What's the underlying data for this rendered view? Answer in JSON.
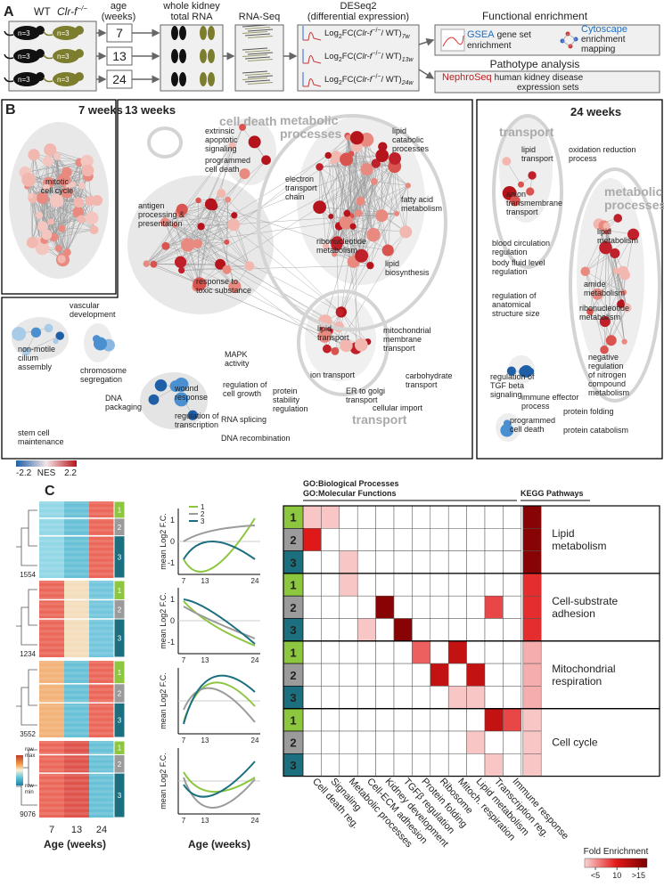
{
  "panel_a": {
    "label": "A",
    "wt": "WT",
    "ko": "Clr-f",
    "ko_sup": "−/−",
    "n": "n=3",
    "age_header": [
      "age",
      "(weeks)"
    ],
    "ages": [
      "7",
      "13",
      "24"
    ],
    "rna_header": [
      "whole kidney",
      "total RNA"
    ],
    "rnaseq": "RNA-Seq",
    "deseq": [
      "DESeq2",
      "(differential expression)"
    ],
    "log2fc": {
      "log": "Log",
      "two": "2",
      "fc": "FC(",
      "ko": "Clr-f",
      "sup": "−/−",
      "wt": "/ WT)",
      "subs": [
        "7w",
        "13w",
        "24w"
      ]
    },
    "functional": "Functional enrichment",
    "gsea": "GSEA",
    "gsea_text": [
      "gene set",
      "enrichment"
    ],
    "cytoscape": "Cytoscape",
    "cytoscape_text": [
      "enrichment",
      "mapping"
    ],
    "pathotype": "Pathotype analysis",
    "nephroseq": "NephroSeq",
    "nephroseq_text": [
      "human kidney disease",
      "expression sets"
    ]
  },
  "panel_b": {
    "label": "B",
    "w7": {
      "title": "7 weeks",
      "labels": [
        [
          "mitotic",
          "cell cycle"
        ]
      ]
    },
    "w13": {
      "title": "13 weeks",
      "groups": [
        [
          "cell death"
        ],
        [
          "metabolic",
          "processes"
        ],
        [
          "transport"
        ]
      ],
      "labels": [
        [
          "extrinsic",
          "apoptotic",
          "signaling"
        ],
        [
          "programmed",
          "cell death"
        ],
        [
          "antigen",
          "processing &",
          "presentation"
        ],
        [
          "electron",
          "transport",
          "chain"
        ],
        [
          "lipid",
          "catabolic",
          "processes"
        ],
        [
          "fatty acid",
          "metabolism"
        ],
        [
          "ribonucleotide",
          "metabolism"
        ],
        [
          "lipid",
          "biosynthesis"
        ],
        [
          "response to",
          "toxic substance"
        ],
        [
          "vascular",
          "development"
        ],
        [
          "non-motile",
          "cilium",
          "assembly"
        ],
        [
          "chromosome",
          "segregation"
        ],
        [
          "wound",
          "response"
        ],
        [
          "MAPK",
          "activity"
        ],
        [
          "regulation of",
          "cell growth"
        ],
        [
          "protein",
          "stability",
          "regulation"
        ],
        [
          "lipid",
          "transport"
        ],
        [
          "mitochondrial",
          "membrane",
          "transport"
        ],
        [
          "ion transport"
        ],
        [
          "carbohydrate",
          "transport"
        ],
        [
          "ER to golgi",
          "transport"
        ],
        [
          "cellular import"
        ],
        [
          "DNA",
          "packaging"
        ],
        [
          "stem cell",
          "maintenance"
        ],
        [
          "regulation of",
          "transcription"
        ],
        [
          "RNA splicing"
        ],
        [
          "DNA recombination"
        ]
      ]
    },
    "w24": {
      "title": "24 weeks",
      "groups": [
        [
          "transport"
        ],
        [
          "metabolic",
          "processes"
        ]
      ],
      "labels": [
        [
          "lipid",
          "transport"
        ],
        [
          "anion",
          "transmembrane",
          "transport"
        ],
        [
          "oxidation reduction",
          "process"
        ],
        [
          "lipid",
          "metabolism"
        ],
        [
          "blood circulation",
          "regulation"
        ],
        [
          "body fluid level",
          "regulation"
        ],
        [
          "amide",
          "metabolism"
        ],
        [
          "regulation of",
          "anatomical",
          "structure size"
        ],
        [
          "ribonucleotide",
          "metabolism"
        ],
        [
          "regulation of",
          "TGF beta",
          "signaling"
        ],
        [
          "negative",
          "regulation",
          "of nitrogen",
          "compound",
          "metabolism"
        ],
        [
          "immune effector",
          "process"
        ],
        [
          "protein folding"
        ],
        [
          "programmed",
          "cell death"
        ],
        [
          "protein catabolism"
        ]
      ]
    },
    "nes_legend": {
      "min": "-2.2",
      "title": "NES",
      "max": "2.2"
    }
  },
  "panel_c": {
    "label": "C",
    "cluster_sizes": [
      "1554",
      "1234",
      "3552",
      "9076"
    ],
    "row_legend": {
      "max": [
        "row",
        "max"
      ],
      "min": [
        "row",
        "min"
      ]
    },
    "ages": [
      "7",
      "13",
      "24"
    ],
    "age_axis": "Age (weeks)",
    "mean_axis": "mean Log2 F.C.",
    "line_ticks": [
      "1",
      "0",
      "-1"
    ],
    "cluster_ids": [
      "1",
      "2",
      "3"
    ],
    "cluster_colors": [
      "#8dc63f",
      "#9b9b9b",
      "#1b6f7f"
    ],
    "go_header": [
      "GO:Biological Processes",
      "GO:Molecular Functions"
    ],
    "kegg_header": "KEGG Pathways",
    "pathways": [
      [
        "Lipid",
        "metabolism"
      ],
      [
        "Cell-substrate",
        "adhesion"
      ],
      [
        "Mitochondrial",
        "respiration"
      ],
      [
        "Cell cycle"
      ]
    ],
    "columns": [
      "Cell death reg.",
      "Signaling",
      "Metabolic processes",
      "Cell-ECM adhesion",
      "Kidney development",
      "TGFβ regulation",
      "Protein folding",
      "Ribosome",
      "Mitoch. respiration",
      "Lipid metabolism",
      "Transcription reg.",
      "Immune response"
    ],
    "enrichment": [
      [
        3,
        3,
        0,
        0,
        0,
        0,
        0,
        0,
        0,
        0,
        0,
        0,
        16
      ],
      [
        10,
        0,
        0,
        0,
        0,
        0,
        0,
        0,
        0,
        0,
        0,
        0,
        16
      ],
      [
        0,
        0,
        3,
        0,
        0,
        0,
        0,
        0,
        0,
        0,
        0,
        0,
        16
      ],
      [
        0,
        0,
        3,
        0,
        0,
        0,
        0,
        0,
        0,
        0,
        0,
        0,
        9
      ],
      [
        0,
        0,
        0,
        0,
        16,
        0,
        0,
        0,
        0,
        0,
        8,
        0,
        9
      ],
      [
        0,
        0,
        0,
        3,
        0,
        16,
        0,
        0,
        0,
        0,
        0,
        0,
        9
      ],
      [
        0,
        0,
        0,
        0,
        0,
        0,
        7,
        0,
        12,
        0,
        0,
        0,
        4
      ],
      [
        0,
        0,
        0,
        0,
        0,
        0,
        0,
        12,
        0,
        12,
        0,
        0,
        4
      ],
      [
        0,
        0,
        0,
        0,
        0,
        0,
        0,
        0,
        3,
        3,
        0,
        0,
        4
      ],
      [
        0,
        0,
        0,
        0,
        0,
        0,
        0,
        0,
        0,
        0,
        12,
        8,
        3
      ],
      [
        0,
        0,
        0,
        0,
        0,
        0,
        0,
        0,
        0,
        3,
        0,
        0,
        3
      ],
      [
        0,
        0,
        0,
        0,
        0,
        0,
        0,
        0,
        0,
        0,
        3,
        0,
        3
      ]
    ],
    "fold_legend": {
      "title": "Fold Enrichment",
      "lim": [
        2.5,
        17
      ],
      "ticks": [
        {
          "value": 5,
          "label": "<5"
        },
        10,
        {
          "value": 15,
          "label": ">15"
        }
      ]
    }
  }
}
